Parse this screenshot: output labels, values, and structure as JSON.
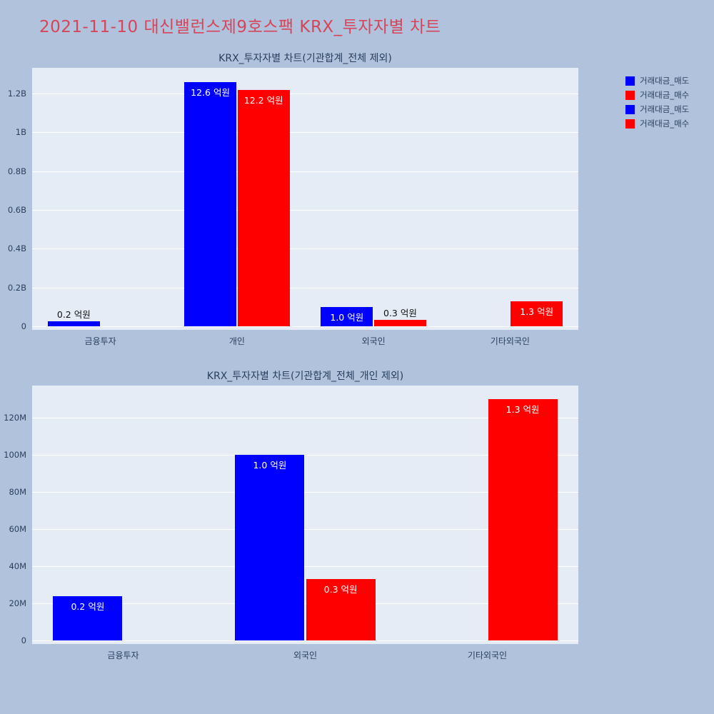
{
  "header": {
    "title": "2021-11-10 대신밸런스제9호스팩 KRX_투자자별 차트"
  },
  "colors": {
    "page_bg": "#b0c2dc",
    "plot_bg": "#e5ecf6",
    "sell": "#0000ff",
    "buy": "#ff0000",
    "title": "#d6455a",
    "axis_text": "#2a3f5f",
    "grid": "#ffffff",
    "label_inside": "#ffffff",
    "label_outside": "#111111"
  },
  "legend": {
    "items": [
      {
        "label": "거래대금_매도",
        "color_key": "sell"
      },
      {
        "label": "거래대금_매수",
        "color_key": "buy"
      },
      {
        "label": "거래대금_매도",
        "color_key": "sell"
      },
      {
        "label": "거래대금_매수",
        "color_key": "buy"
      }
    ]
  },
  "chart_data": [
    {
      "type": "bar",
      "title": "KRX_투자자별 차트(기관합계_전체 제외)",
      "categories": [
        "금융투자",
        "개인",
        "외국인",
        "기타외국인"
      ],
      "series": [
        {
          "name": "거래대금_매도",
          "color_key": "sell",
          "values": [
            24000000,
            1260000000,
            100000000,
            null
          ],
          "labels": [
            "0.2 억원",
            "12.6 억원",
            "1.0 억원",
            null
          ]
        },
        {
          "name": "거래대금_매수",
          "color_key": "buy",
          "values": [
            null,
            1220000000,
            33000000,
            130000000
          ],
          "labels": [
            null,
            "12.2 억원",
            "0.3 억원",
            "1.3 억원"
          ]
        }
      ],
      "ylim": [
        0,
        1333000000
      ],
      "yticks": [
        {
          "v": 0,
          "label": "0"
        },
        {
          "v": 200000000,
          "label": "0.2B"
        },
        {
          "v": 400000000,
          "label": "0.4B"
        },
        {
          "v": 600000000,
          "label": "0.6B"
        },
        {
          "v": 800000000,
          "label": "0.8B"
        },
        {
          "v": 1000000000,
          "label": "1B"
        },
        {
          "v": 1200000000,
          "label": "1.2B"
        }
      ],
      "grid": true,
      "legend_position": "top-right"
    },
    {
      "type": "bar",
      "title": "KRX_투자자별 차트(기관합계_전체_개인 제외)",
      "categories": [
        "금융투자",
        "외국인",
        "기타외국인"
      ],
      "series": [
        {
          "name": "거래대금_매도",
          "color_key": "sell",
          "values": [
            24000000,
            100000000,
            null
          ],
          "labels": [
            "0.2 억원",
            "1.0 억원",
            null
          ]
        },
        {
          "name": "거래대금_매수",
          "color_key": "buy",
          "values": [
            null,
            33000000,
            130000000
          ],
          "labels": [
            null,
            "0.3 억원",
            "1.3 억원"
          ]
        }
      ],
      "ylim": [
        0,
        137500000
      ],
      "yticks": [
        {
          "v": 0,
          "label": "0"
        },
        {
          "v": 20000000,
          "label": "20M"
        },
        {
          "v": 40000000,
          "label": "40M"
        },
        {
          "v": 60000000,
          "label": "60M"
        },
        {
          "v": 80000000,
          "label": "80M"
        },
        {
          "v": 100000000,
          "label": "100M"
        },
        {
          "v": 120000000,
          "label": "120M"
        }
      ],
      "grid": true
    }
  ]
}
